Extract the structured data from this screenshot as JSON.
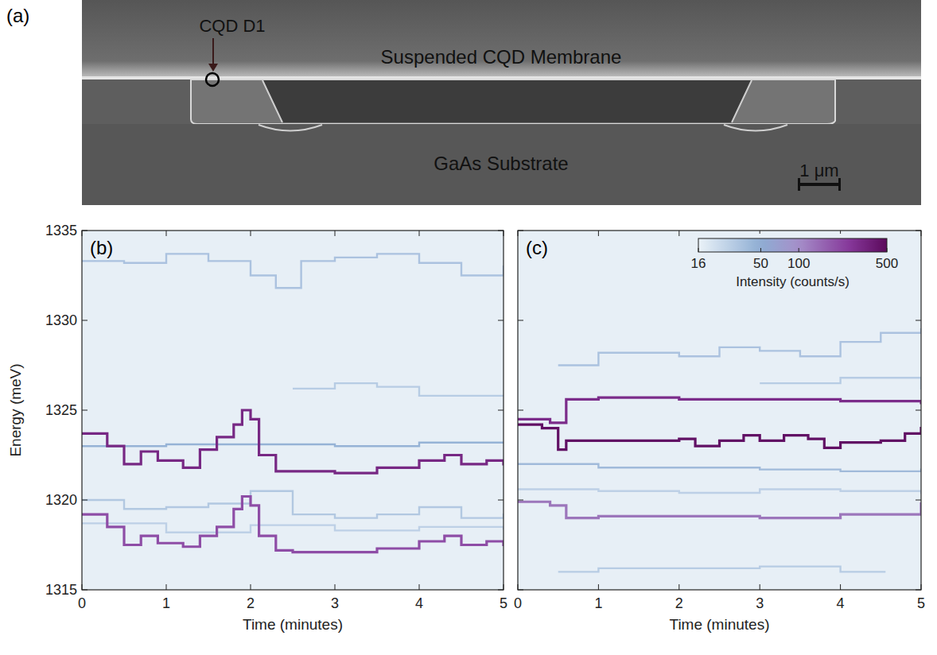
{
  "chart_data": [
    {
      "type": "image",
      "letter": "(a)",
      "annotations": [
        "CQD D1",
        "Suspended CQD Membrane",
        "GaAs Substrate",
        "1 μm"
      ]
    },
    {
      "type": "line",
      "letter": "(b)",
      "xlabel": "Time (minutes)",
      "ylabel": "Energy (meV)",
      "xlim": [
        0,
        5
      ],
      "ylim": [
        1315,
        1335
      ],
      "xticks": [
        0,
        1,
        2,
        3,
        4,
        5
      ],
      "yticks": [
        1315,
        1320,
        1325,
        1330,
        1335
      ],
      "line_style": "step",
      "series": [
        {
          "x": [
            0,
            0.3,
            0.5,
            0.7,
            0.9,
            1.2,
            1.4,
            1.6,
            1.8,
            1.9,
            2.0,
            2.1,
            2.3,
            2.5,
            3.0,
            3.5,
            4.0,
            4.3,
            4.5,
            4.8,
            5
          ],
          "values": [
            1323.7,
            1323.0,
            1322.0,
            1322.7,
            1322.2,
            1321.8,
            1322.8,
            1323.5,
            1324.2,
            1325.0,
            1324.5,
            1322.5,
            1321.6,
            1321.6,
            1321.5,
            1321.8,
            1322.2,
            1322.5,
            1322.0,
            1322.2,
            1322.0
          ],
          "intensity": 320
        },
        {
          "x": [
            0,
            0.3,
            0.5,
            0.7,
            0.9,
            1.2,
            1.4,
            1.6,
            1.8,
            1.9,
            2.0,
            2.1,
            2.3,
            2.5,
            3.0,
            3.5,
            4.0,
            4.3,
            4.5,
            4.8,
            5
          ],
          "values": [
            1319.2,
            1318.5,
            1317.5,
            1318.0,
            1317.6,
            1317.4,
            1318.0,
            1318.5,
            1319.5,
            1320.2,
            1319.7,
            1318.0,
            1317.2,
            1317.1,
            1317.1,
            1317.3,
            1317.7,
            1318.0,
            1317.5,
            1317.7,
            1317.5
          ],
          "intensity": 200
        },
        {
          "x": [
            0,
            1,
            2,
            3,
            4,
            5
          ],
          "values": [
            1323.0,
            1323.1,
            1323.1,
            1323.0,
            1323.2,
            1323.2
          ],
          "intensity": 45
        },
        {
          "x": [
            0,
            0.5,
            1,
            1.5,
            2,
            2.3,
            2.6,
            3,
            3.5,
            4,
            4.5,
            5
          ],
          "values": [
            1333.3,
            1333.2,
            1333.7,
            1333.3,
            1332.5,
            1331.8,
            1333.3,
            1333.5,
            1333.7,
            1333.2,
            1332.5,
            1333.0
          ],
          "intensity": 35
        },
        {
          "x": [
            2.5,
            3,
            3.5,
            4,
            5
          ],
          "values": [
            1326.2,
            1326.5,
            1326.3,
            1325.8,
            1325.8
          ],
          "intensity": 30
        },
        {
          "x": [
            0,
            0.5,
            1,
            1.5,
            2,
            2.5,
            3,
            3.5,
            4,
            4.5,
            5
          ],
          "values": [
            1320.0,
            1319.5,
            1319.6,
            1319.8,
            1320.5,
            1319.2,
            1319.0,
            1319.2,
            1319.6,
            1319.0,
            1319.2
          ],
          "intensity": 32
        },
        {
          "x": [
            0,
            1,
            2,
            3,
            4,
            5
          ],
          "values": [
            1318.7,
            1318.2,
            1318.6,
            1318.3,
            1318.5,
            1318.4
          ],
          "intensity": 28
        }
      ]
    },
    {
      "type": "line",
      "letter": "(c)",
      "xlabel": "Time (minutes)",
      "xlim": [
        0,
        5
      ],
      "ylim": [
        1315,
        1335
      ],
      "xticks": [
        0,
        1,
        2,
        3,
        4,
        5
      ],
      "yticks": [
        1315,
        1320,
        1325,
        1330,
        1335
      ],
      "tick_labels": "x",
      "line_style": "step",
      "series": [
        {
          "x": [
            0,
            0.3,
            0.5,
            0.6,
            1,
            1.5,
            2,
            2.2,
            2.5,
            2.8,
            3,
            3.3,
            3.6,
            3.8,
            4,
            4.5,
            4.8,
            5
          ],
          "values": [
            1324.2,
            1324.0,
            1322.8,
            1323.3,
            1323.3,
            1323.3,
            1323.4,
            1323.0,
            1323.3,
            1323.6,
            1323.3,
            1323.6,
            1323.4,
            1322.9,
            1323.2,
            1323.3,
            1323.7,
            1324.0
          ],
          "intensity": 460
        },
        {
          "x": [
            0,
            0.4,
            0.6,
            1,
            2,
            3,
            4,
            5
          ],
          "values": [
            1324.5,
            1324.3,
            1325.6,
            1325.7,
            1325.6,
            1325.6,
            1325.5,
            1325.4
          ],
          "intensity": 300
        },
        {
          "x": [
            0,
            0.4,
            0.6,
            1,
            2,
            3,
            4,
            5
          ],
          "values": [
            1319.9,
            1319.7,
            1319.0,
            1319.1,
            1319.1,
            1319.0,
            1319.2,
            1319.8
          ],
          "intensity": 130
        },
        {
          "x": [
            0,
            1,
            2,
            3,
            4,
            5
          ],
          "values": [
            1322.0,
            1321.8,
            1321.8,
            1321.7,
            1321.6,
            1321.7
          ],
          "intensity": 40
        },
        {
          "x": [
            0.5,
            1,
            1.5,
            2,
            2.5,
            3,
            3.5,
            4,
            4.5,
            5
          ],
          "values": [
            1327.5,
            1328.2,
            1328.2,
            1328.0,
            1328.5,
            1328.3,
            1328.0,
            1328.8,
            1329.3,
            1329.5
          ],
          "intensity": 35
        },
        {
          "x": [
            0.5,
            1,
            2,
            3,
            4,
            4.5
          ],
          "values": [
            1316.0,
            1316.2,
            1316.2,
            1316.3,
            1316.0,
            1316.0
          ],
          "intensity": 30
        },
        {
          "x": [
            0,
            1,
            2,
            3,
            4,
            5
          ],
          "values": [
            1320.6,
            1320.5,
            1320.4,
            1320.6,
            1320.5,
            1320.4
          ],
          "intensity": 28
        },
        {
          "x": [
            3,
            4,
            5
          ],
          "values": [
            1326.5,
            1326.8,
            1326.2
          ],
          "intensity": 30
        }
      ],
      "colorbar": {
        "range": [
          16,
          500
        ],
        "ticks": [
          16,
          50,
          100,
          500
        ],
        "label": "Intensity (counts/s)",
        "log": true
      }
    }
  ]
}
